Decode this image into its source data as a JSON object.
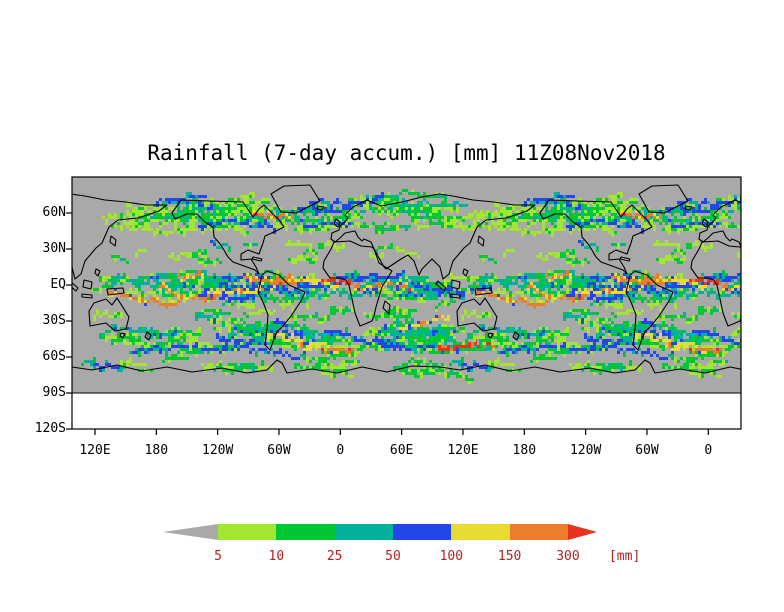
{
  "title": "Rainfall (7-day accum.) [mm] 11Z08Nov2018",
  "map": {
    "background_color": "#a9a9a9",
    "coastline_color": "#000000",
    "frame_color": "#000000"
  },
  "axes": {
    "lat_ticks": [
      "60N",
      "30N",
      "EQ",
      "30S",
      "60S",
      "90S",
      "120S"
    ],
    "lon_ticks": [
      "120E",
      "180",
      "120W",
      "60W",
      "0",
      "60E",
      "120E",
      "180",
      "120W",
      "60W",
      "0"
    ]
  },
  "colorbar": {
    "tick_labels": [
      "5",
      "10",
      "25",
      "50",
      "100",
      "150",
      "300"
    ],
    "unit_label": "[mm]",
    "below_min_color": "#aaaaaa",
    "segment_colors": [
      "#a2e632",
      "#00c832",
      "#00b29b",
      "#2346e8",
      "#e8dc32",
      "#ec7d2d"
    ],
    "above_max_color": "#e8321e",
    "label_color": "#b22222"
  },
  "chart_data": {
    "type": "heatmap",
    "title": "Rainfall (7-day accum.) [mm] 11Z08Nov2018",
    "variable": "Rainfall (7-day accumulation)",
    "unit": "mm",
    "valid_time": "11Z08Nov2018",
    "x_axis": {
      "label_type": "longitude",
      "ticks": [
        "120E",
        "180",
        "120W",
        "60W",
        "0",
        "60E",
        "120E",
        "180",
        "120W",
        "60W",
        "0"
      ]
    },
    "y_axis": {
      "label_type": "latitude",
      "ticks": [
        "60N",
        "30N",
        "EQ",
        "30S",
        "60S",
        "90S",
        "120S"
      ]
    },
    "legend": {
      "position": "bottom",
      "bins": [
        {
          "max": 5,
          "color_name": "gray",
          "hex": "#aaaaaa"
        },
        {
          "min": 5,
          "max": 10,
          "color_name": "yellow-green",
          "hex": "#a2e632"
        },
        {
          "min": 10,
          "max": 25,
          "color_name": "green",
          "hex": "#00c832"
        },
        {
          "min": 25,
          "max": 50,
          "color_name": "teal",
          "hex": "#00b29b"
        },
        {
          "min": 50,
          "max": 100,
          "color_name": "blue",
          "hex": "#2346e8"
        },
        {
          "min": 100,
          "max": 150,
          "color_name": "yellow",
          "hex": "#e8dc32"
        },
        {
          "min": 150,
          "max": 300,
          "color_name": "orange",
          "hex": "#ec7d2d"
        },
        {
          "min": 300,
          "color_name": "red",
          "hex": "#e8321e"
        }
      ]
    },
    "grid": false,
    "notes": "Global map (longitudes wrap nearly twice); rain bands along mid-latitude storm tracks, the ITCZ near the equator and the Southern Ocean; heaviest cores (orange/red) in the tropics and southern storm track."
  }
}
